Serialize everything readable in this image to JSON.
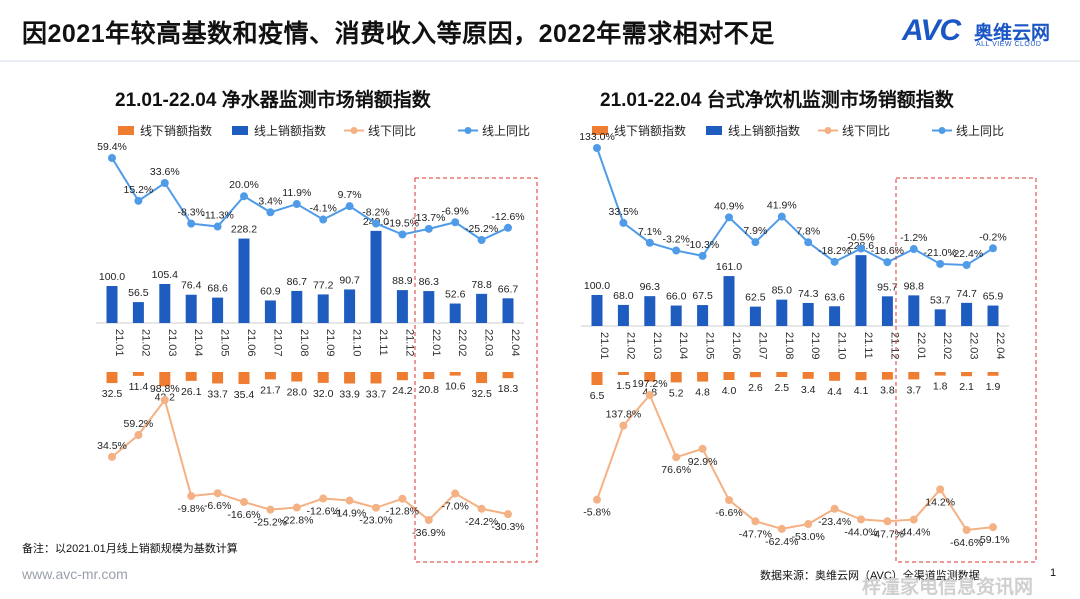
{
  "header": {
    "title": "因2021年较高基数和疫情、消费收入等原因，2022年需求相对不足",
    "logo_mark": "AVC",
    "logo_cn": "奥维云网",
    "logo_en": "ALL VIEW CLOUD"
  },
  "footer": {
    "note": "备注：以2021.01月线上销额规模为基数计算",
    "site": "www.avc-mr.com",
    "source": "数据来源：奥维云网（AVC）全渠道监测数据",
    "page": "1",
    "watermark": "梓潼家电信息资讯网"
  },
  "colors": {
    "online_bar": "#1f5cbf",
    "offline_bar": "#ee7d31",
    "online_line": "#4f9be8",
    "offline_line": "#f4b183",
    "highlight_box": "#d9352f"
  },
  "chart_data": [
    {
      "type": "bar",
      "title": "21.01-22.04  净水器监测市场销额指数",
      "categories": [
        "21.01",
        "21.02",
        "21.03",
        "21.04",
        "21.05",
        "21.06",
        "21.07",
        "21.08",
        "21.09",
        "21.10",
        "21.11",
        "21.12",
        "22.01",
        "22.02",
        "22.03",
        "22.04"
      ],
      "series": [
        {
          "name": "线下销额指数",
          "values": [
            32.5,
            11.4,
            42.2,
            26.1,
            33.7,
            35.4,
            21.7,
            28.0,
            32.0,
            33.9,
            33.7,
            24.2,
            20.8,
            10.6,
            32.5,
            18.3
          ]
        },
        {
          "name": "线上销额指数",
          "values": [
            100.0,
            56.5,
            105.4,
            76.4,
            68.6,
            228.2,
            60.9,
            86.7,
            77.2,
            90.7,
            249.0,
            88.9,
            86.3,
            52.6,
            78.8,
            66.7
          ]
        },
        {
          "name": "线下同比",
          "values": [
            34.5,
            59.2,
            98.8,
            -9.8,
            -6.6,
            -16.6,
            -25.2,
            -22.8,
            -12.6,
            -14.9,
            -23.0,
            -12.8,
            -36.9,
            -7.0,
            -24.2,
            -30.3
          ],
          "unit": "%"
        },
        {
          "name": "线上同比",
          "values": [
            59.4,
            15.2,
            33.6,
            -8.3,
            -11.3,
            20.0,
            3.4,
            11.9,
            -4.1,
            9.7,
            -8.2,
            -19.5,
            -13.7,
            -6.9,
            -25.2,
            -12.6
          ],
          "unit": "%"
        }
      ],
      "labels_online": [
        "100.0",
        "56.5",
        "105.4",
        "76.4",
        "68.6",
        "228.2",
        "60.9",
        "86.7",
        "77.2",
        "90.7",
        "249.0",
        "88.9",
        "86.3",
        "52.6",
        "78.8",
        "66.7"
      ],
      "labels_offline": [
        "32.5",
        "11.4",
        "42.2",
        "26.1",
        "33.7",
        "35.4",
        "21.7",
        "28.0",
        "32.0",
        "33.9",
        "33.7",
        "24.2",
        "20.8",
        "10.6",
        "32.5",
        "18.3"
      ],
      "labels_offline_yoy": [
        "34.5%",
        "59.2%",
        "98.8%",
        "-9.8%",
        "-6.6%",
        "-16.6%",
        "-25.2%",
        "-22.8%",
        "-12.6%",
        "-14.9%",
        "-23.0%",
        "-12.8%",
        "-36.9%",
        "-7.0%",
        "-24.2%",
        "-30.3%"
      ],
      "labels_online_yoy": [
        "59.4%",
        "15.2%",
        "33.6%",
        "-8.3%",
        "-11.3%",
        "20.0%",
        "3.4%",
        "11.9%",
        "-4.1%",
        "9.7%",
        "-8.2%",
        "-19.5%",
        "-13.7%",
        "-6.9%",
        "-25.2%",
        "-12.6%"
      ],
      "highlight": [
        "22.01",
        "22.04"
      ]
    },
    {
      "type": "bar",
      "title": "21.01-22.04  台式净饮机监测市场销额指数",
      "categories": [
        "21.01",
        "21.02",
        "21.03",
        "21.04",
        "21.05",
        "21.06",
        "21.07",
        "21.08",
        "21.09",
        "21.10",
        "21.11",
        "21.12",
        "22.01",
        "22.02",
        "22.03",
        "22.04"
      ],
      "series": [
        {
          "name": "线下销额指数",
          "values": [
            6.5,
            1.5,
            4.8,
            5.2,
            4.8,
            4.0,
            2.6,
            2.5,
            3.4,
            4.4,
            4.1,
            3.8,
            3.7,
            1.8,
            2.1,
            1.9
          ]
        },
        {
          "name": "线上销额指数",
          "values": [
            100.0,
            68.0,
            96.3,
            66.0,
            67.5,
            161.0,
            62.5,
            85.0,
            74.3,
            63.6,
            228.6,
            95.7,
            98.8,
            53.7,
            74.7,
            65.9
          ]
        },
        {
          "name": "线下同比",
          "values": [
            -5.8,
            137.8,
            197.2,
            76.6,
            92.9,
            -6.6,
            -47.7,
            -62.4,
            -53.0,
            -23.4,
            -44.0,
            -47.7,
            -44.4,
            14.2,
            -64.6,
            -59.1
          ],
          "unit": "%"
        },
        {
          "name": "线上同比",
          "values": [
            133.0,
            33.5,
            7.1,
            -3.2,
            -10.3,
            40.9,
            7.9,
            41.9,
            7.8,
            -18.2,
            -0.5,
            -18.6,
            -1.2,
            -21.0,
            -22.4,
            -0.2
          ],
          "unit": "%"
        }
      ],
      "labels_online": [
        "100.0",
        "68.0",
        "96.3",
        "66.0",
        "67.5",
        "161.0",
        "62.5",
        "85.0",
        "74.3",
        "63.6",
        "228.6",
        "95.7",
        "98.8",
        "53.7",
        "74.7",
        "65.9"
      ],
      "labels_offline": [
        "6.5",
        "1.5",
        "4.8",
        "5.2",
        "4.8",
        "4.0",
        "2.6",
        "2.5",
        "3.4",
        "4.4",
        "4.1",
        "3.8",
        "3.7",
        "1.8",
        "2.1",
        "1.9"
      ],
      "labels_offline_yoy": [
        "-5.8%",
        "137.8%",
        "197.2%",
        "76.6%",
        "92.9%",
        "-6.6%",
        "-47.7%",
        "-62.4%",
        "-53.0%",
        "-23.4%",
        "-44.0%",
        "-47.7%",
        "-44.4%",
        "14.2%",
        "-64.6%",
        "-59.1%"
      ],
      "labels_online_yoy": [
        "133.0%",
        "33.5%",
        "7.1%",
        "-3.2%",
        "-10.3%",
        "40.9%",
        "7.9%",
        "41.9%",
        "7.8%",
        "-18.2%",
        "-0.5%",
        "-18.6%",
        "-1.2%",
        "-21.0%",
        "-22.4%",
        "-0.2%"
      ],
      "highlight": [
        "22.01",
        "22.04"
      ]
    }
  ]
}
